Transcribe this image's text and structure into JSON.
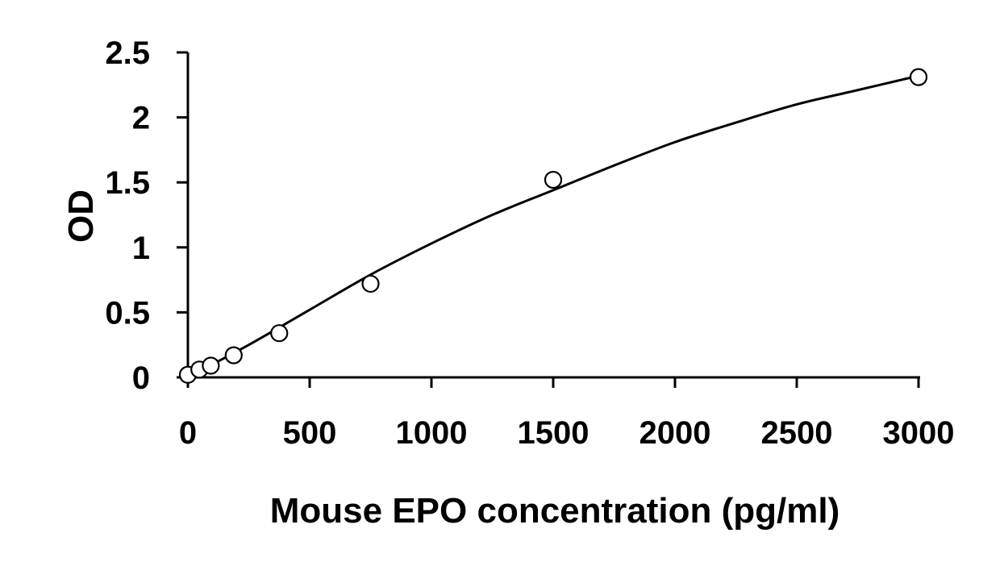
{
  "chart_data": {
    "type": "scatter",
    "title": "",
    "xlabel": "Mouse EPO concentration (pg/ml)",
    "ylabel": "OD",
    "xlim": [
      0,
      3000
    ],
    "ylim": [
      0,
      2.5
    ],
    "xticks": [
      "0",
      "500",
      "1000",
      "1500",
      "2000",
      "2500",
      "3000"
    ],
    "yticks": [
      "0",
      "0.5",
      "1",
      "1.5",
      "2",
      "2.5"
    ],
    "grid": false,
    "legend": "none",
    "series": [
      {
        "marker": "open-circle",
        "x": [
          0,
          47,
          94,
          188,
          375,
          750,
          1500,
          3000
        ],
        "y": [
          0.02,
          0.06,
          0.09,
          0.17,
          0.34,
          0.72,
          1.52,
          2.31
        ]
      }
    ],
    "fit_curve": {
      "type": "polynomial",
      "x": [
        0,
        250,
        500,
        750,
        1000,
        1250,
        1500,
        1750,
        2000,
        2250,
        2500,
        2750,
        3000
      ],
      "y": [
        0.0,
        0.25,
        0.52,
        0.79,
        1.03,
        1.25,
        1.44,
        1.63,
        1.81,
        1.96,
        2.1,
        2.21,
        2.32
      ]
    },
    "colors": {
      "axis": "#000000",
      "marker_stroke": "#000000",
      "marker_fill": "#ffffff",
      "curve": "#000000"
    }
  }
}
